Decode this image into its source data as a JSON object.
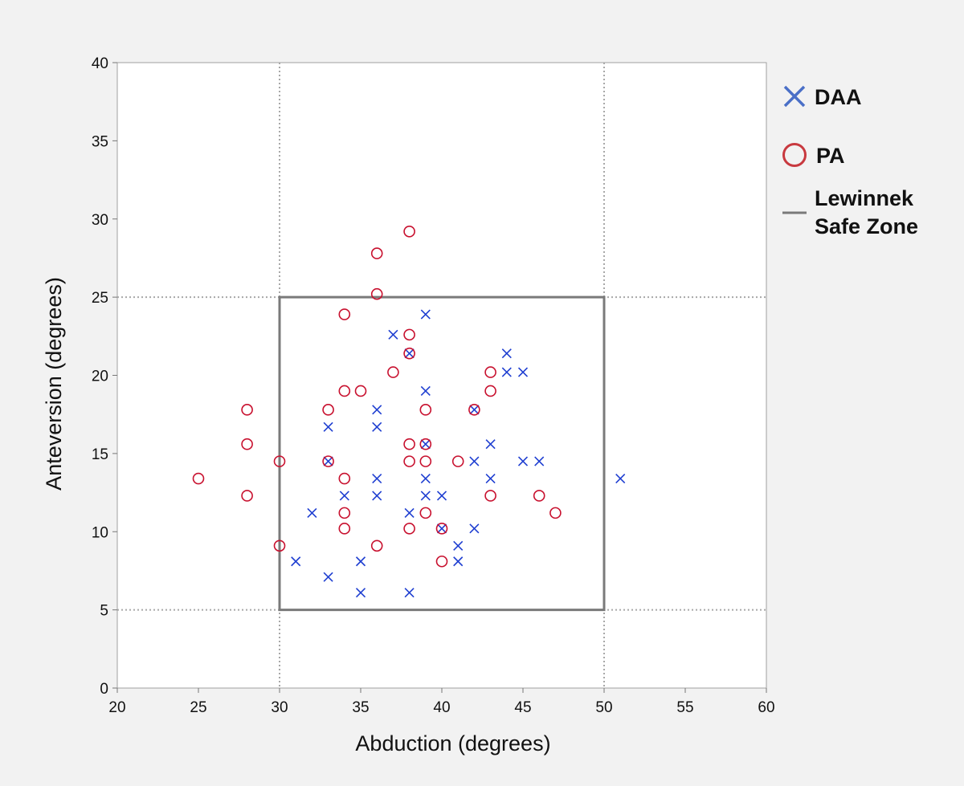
{
  "chart_data": {
    "type": "scatter",
    "title": "",
    "xlabel": "Abduction (degrees)",
    "ylabel": "Anteversion (degrees)",
    "xlim": [
      20,
      60
    ],
    "ylim": [
      0,
      40
    ],
    "xticks": [
      20,
      25,
      30,
      35,
      40,
      45,
      50,
      55,
      60
    ],
    "yticks": [
      0,
      5,
      10,
      15,
      20,
      25,
      30,
      35,
      40
    ],
    "grid": false,
    "legend_position": "right",
    "reference_lines": {
      "x": [
        30,
        50
      ],
      "y": [
        5,
        25
      ],
      "style": "dotted"
    },
    "safe_zone": {
      "name": "Lewinnek Safe Zone",
      "name_lines": [
        "Lewinnek",
        "Safe Zone"
      ],
      "x_range": [
        30,
        50
      ],
      "y_range": [
        5,
        25
      ],
      "color": "#7a7a7a"
    },
    "series": [
      {
        "name": "DAA",
        "marker": "x",
        "color": "#1f3fd1",
        "legend_color": "#4a6fc7",
        "points": [
          [
            31,
            8.1
          ],
          [
            32,
            11.2
          ],
          [
            33,
            16.7
          ],
          [
            33,
            14.5
          ],
          [
            33,
            7.1
          ],
          [
            34,
            12.3
          ],
          [
            35,
            8.1
          ],
          [
            35,
            6.1
          ],
          [
            36,
            17.8
          ],
          [
            36,
            16.7
          ],
          [
            36,
            13.4
          ],
          [
            36,
            12.3
          ],
          [
            37,
            22.6
          ],
          [
            38,
            21.4
          ],
          [
            38,
            11.2
          ],
          [
            38,
            6.1
          ],
          [
            39,
            23.9
          ],
          [
            39,
            19.0
          ],
          [
            39,
            15.6
          ],
          [
            39,
            13.4
          ],
          [
            39,
            12.3
          ],
          [
            40,
            12.3
          ],
          [
            40,
            10.2
          ],
          [
            41,
            9.1
          ],
          [
            41,
            8.1
          ],
          [
            42,
            17.8
          ],
          [
            42,
            14.5
          ],
          [
            42,
            10.2
          ],
          [
            43,
            15.6
          ],
          [
            43,
            13.4
          ],
          [
            44,
            21.4
          ],
          [
            44,
            20.2
          ],
          [
            45,
            20.2
          ],
          [
            45,
            14.5
          ],
          [
            46,
            14.5
          ],
          [
            51,
            13.4
          ]
        ]
      },
      {
        "name": "PA",
        "marker": "circle",
        "color": "#c8102e",
        "legend_color": "#c8393f",
        "points": [
          [
            25,
            13.4
          ],
          [
            28,
            17.8
          ],
          [
            28,
            15.6
          ],
          [
            28,
            12.3
          ],
          [
            30,
            14.5
          ],
          [
            30,
            9.1
          ],
          [
            33,
            17.8
          ],
          [
            33,
            14.5
          ],
          [
            34,
            23.9
          ],
          [
            34,
            19.0
          ],
          [
            34,
            13.4
          ],
          [
            34,
            11.2
          ],
          [
            34,
            10.2
          ],
          [
            35,
            19.0
          ],
          [
            36,
            27.8
          ],
          [
            36,
            25.2
          ],
          [
            36,
            9.1
          ],
          [
            37,
            20.2
          ],
          [
            38,
            29.2
          ],
          [
            38,
            22.6
          ],
          [
            38,
            21.4
          ],
          [
            38,
            15.6
          ],
          [
            38,
            14.5
          ],
          [
            38,
            10.2
          ],
          [
            39,
            17.8
          ],
          [
            39,
            15.6
          ],
          [
            39,
            14.5
          ],
          [
            39,
            11.2
          ],
          [
            40,
            10.2
          ],
          [
            40,
            8.1
          ],
          [
            41,
            14.5
          ],
          [
            42,
            17.8
          ],
          [
            43,
            20.2
          ],
          [
            43,
            19.0
          ],
          [
            43,
            12.3
          ],
          [
            46,
            12.3
          ],
          [
            47,
            11.2
          ]
        ]
      }
    ]
  }
}
